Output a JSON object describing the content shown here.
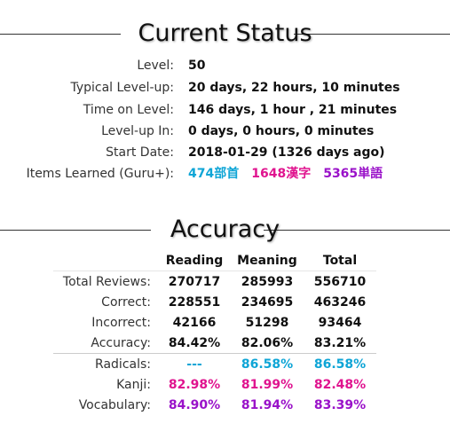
{
  "colors": {
    "radicals": "#0ea5d6",
    "kanji": "#e0148f",
    "vocabulary": "#9a12c9"
  },
  "status": {
    "title": "Current Status",
    "rows": [
      {
        "label": "Level:",
        "value": "50"
      },
      {
        "label": "Typical Level-up:",
        "value": "20 days, 22 hours, 10 minutes"
      },
      {
        "label": "Time on Level:",
        "value": "146 days, 1 hour , 21 minutes"
      },
      {
        "label": "Level-up In:",
        "value": "0 days, 0 hours, 0 minutes"
      },
      {
        "label": "Start Date:",
        "value": "2018-01-29 (1326 days ago)"
      }
    ],
    "items_label": "Items Learned (Guru+):",
    "items": {
      "radicals": "474部首",
      "kanji": "1648漢字",
      "vocabulary": "5365単語"
    }
  },
  "accuracy": {
    "title": "Accuracy",
    "headers": [
      "Reading",
      "Meaning",
      "Total"
    ],
    "rows": [
      {
        "label": "Total Reviews:",
        "reading": "270717",
        "meaning": "285993",
        "total": "556710"
      },
      {
        "label": "Correct:",
        "reading": "228551",
        "meaning": "234695",
        "total": "463246"
      },
      {
        "label": "Incorrect:",
        "reading": "42166",
        "meaning": "51298",
        "total": "93464"
      },
      {
        "label": "Accuracy:",
        "reading": "84.42%",
        "meaning": "82.06%",
        "total": "83.21%"
      }
    ],
    "type_rows": [
      {
        "label": "Radicals:",
        "reading": "---",
        "meaning": "86.58%",
        "total": "86.58%"
      },
      {
        "label": "Kanji:",
        "reading": "82.98%",
        "meaning": "81.99%",
        "total": "82.48%"
      },
      {
        "label": "Vocabulary:",
        "reading": "84.90%",
        "meaning": "81.94%",
        "total": "83.39%"
      }
    ]
  }
}
